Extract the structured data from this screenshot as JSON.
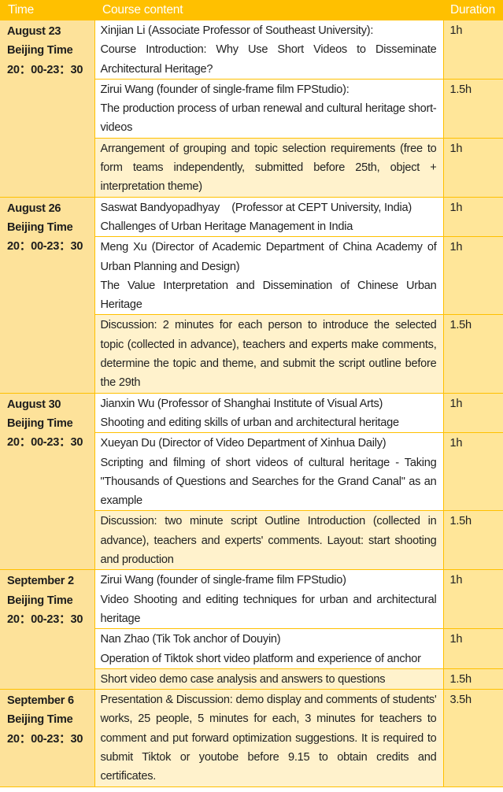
{
  "header": {
    "time": "Time",
    "content": "Course content",
    "duration": "Duration"
  },
  "colors": {
    "header": "#FFC000",
    "time_column": "#FDE29A",
    "duration_column": "#FFE699",
    "highlight_row": "#FFF2CC",
    "plain_row": "#FFFFFF"
  },
  "groups": [
    {
      "date": "August 23",
      "zone": "Beijing Time",
      "hours": "20：00-23：30",
      "sessions": [
        {
          "lines": [
            "Xinjian Li (Associate Professor of Southeast University):",
            "Course Introduction: Why Use Short Videos to Disseminate Architectural Heritage?"
          ],
          "duration": "1h",
          "highlight": false
        },
        {
          "lines": [
            "Zirui Wang (founder of single-frame film FPStudio):",
            "The production process of urban renewal and cultural heritage short-videos"
          ],
          "duration": "1.5h",
          "highlight": false
        },
        {
          "lines": [
            "Arrangement of grouping and topic selection requirements (free to form teams independently, submitted before 25th, object + interpretation theme)"
          ],
          "duration": "1h",
          "highlight": true
        }
      ]
    },
    {
      "date": "August 26",
      "zone": "Beijing Time",
      "hours": "20：00-23：30",
      "sessions": [
        {
          "lines": [
            "Saswat Bandyopadhyay    (Professor at CEPT University, India)",
            "Challenges of Urban Heritage Management in India"
          ],
          "duration": "1h",
          "highlight": false
        },
        {
          "lines": [
            "Meng Xu (Director of Academic Department of China Academy of Urban Planning and Design)",
            "The Value Interpretation and Dissemination of Chinese Urban Heritage"
          ],
          "duration": "1h",
          "highlight": false
        },
        {
          "lines": [
            "Discussion: 2 minutes for each person to introduce the selected topic (collected in advance), teachers and experts make comments, determine the topic and theme, and submit the script outline before the 29th"
          ],
          "duration": "1.5h",
          "highlight": true
        }
      ]
    },
    {
      "date": "August 30",
      "zone": "Beijing Time",
      "hours": "20：00-23：30",
      "sessions": [
        {
          "lines": [
            "Jianxin Wu (Professor of Shanghai Institute of Visual Arts)",
            "Shooting and editing skills of urban and architectural heritage"
          ],
          "duration": "1h",
          "highlight": false
        },
        {
          "lines": [
            "Xueyan Du (Director of Video Department of Xinhua Daily)",
            "Scripting and filming of short videos of cultural heritage - Taking \"Thousands of Questions and Searches for the Grand Canal\" as an example"
          ],
          "duration": "1h",
          "highlight": false
        },
        {
          "lines": [
            "Discussion: two minute script Outline Introduction (collected in advance), teachers and experts' comments. Layout: start shooting and production"
          ],
          "duration": "1.5h",
          "highlight": true
        }
      ]
    },
    {
      "date": "September 2",
      "zone": "Beijing Time",
      "hours": "20：00-23：30",
      "sessions": [
        {
          "lines": [
            "Zirui Wang (founder of single-frame film FPStudio)",
            "Video Shooting and editing techniques for urban and architectural heritage"
          ],
          "duration": "1h",
          "highlight": false
        },
        {
          "lines": [
            "Nan Zhao (Tik Tok anchor of Douyin)",
            "Operation of Tiktok short video platform and experience of anchor"
          ],
          "duration": "1h",
          "highlight": false
        },
        {
          "lines": [
            "Short video demo case analysis and answers to questions"
          ],
          "duration": "1.5h",
          "highlight": true
        }
      ]
    },
    {
      "date": "September 6",
      "zone": "Beijing Time",
      "hours": "20：00-23：30",
      "sessions": [
        {
          "lines": [
            "Presentation & Discussion: demo display and comments of students' works, 25 people, 5 minutes for each, 3 minutes for teachers to comment and put forward optimization suggestions. It is required to submit Tiktok or youtobe before 9.15 to obtain credits and certificates."
          ],
          "duration": "3.5h",
          "highlight": true
        }
      ]
    }
  ]
}
